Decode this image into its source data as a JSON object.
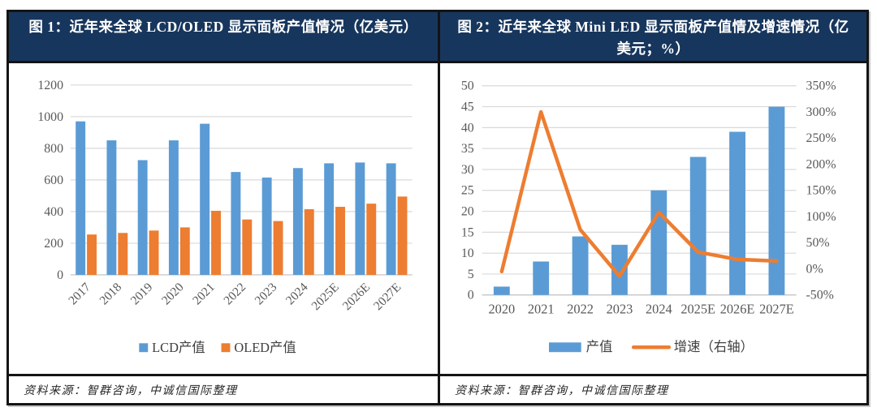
{
  "figure": {
    "panels": [
      {
        "title": "图 1：近年来全球 LCD/OLED 显示面板产值情况（亿美元）",
        "source": "资料来源：智群咨询，中诚信国际整理"
      },
      {
        "title": "图 2：近年来全球 Mini LED 显示面板产值情及增速情况（亿美元；%）",
        "source": "资料来源：智群咨询，中诚信国际整理"
      }
    ]
  },
  "colors": {
    "bar_blue": "#5B9BD5",
    "line_orange": "#ED7D31",
    "header_navy": "#17365D",
    "gridline": "#D9D9D9",
    "axis_baseline": "#BFBFBF",
    "axis_text": "#595959",
    "legend_text": "#404040",
    "border_black": "#141414"
  },
  "chart_data": [
    {
      "type": "bar",
      "title": "近年来全球 LCD/OLED 显示面板产值情况（亿美元）",
      "categories": [
        "2017",
        "2018",
        "2019",
        "2020",
        "2021",
        "2022",
        "2023",
        "2024",
        "2025E",
        "2026E",
        "2027E"
      ],
      "series": [
        {
          "name": "LCD产值",
          "color": "#5B9BD5",
          "values": [
            970,
            850,
            725,
            850,
            955,
            650,
            615,
            675,
            705,
            710,
            705
          ]
        },
        {
          "name": "OLED产值",
          "color": "#ED7D31",
          "values": [
            255,
            265,
            280,
            300,
            405,
            350,
            340,
            415,
            430,
            450,
            495
          ]
        }
      ],
      "xlabel": "",
      "ylabel": "",
      "ylim": [
        0,
        1200
      ],
      "ytick_step": 200,
      "grid": true,
      "legend_position": "bottom",
      "x_label_rotation": -45
    },
    {
      "type": "bar+line",
      "title": "近年来全球 Mini LED 显示面板产值情及增速情况（亿美元；%）",
      "categories": [
        "2020",
        "2021",
        "2022",
        "2023",
        "2024",
        "2025E",
        "2026E",
        "2027E"
      ],
      "series": [
        {
          "name": "产值",
          "kind": "bar",
          "axis": "left",
          "color": "#5B9BD5",
          "values": [
            2,
            8,
            14,
            12,
            25,
            33,
            39,
            45
          ]
        },
        {
          "name": "增速（右轴）",
          "kind": "line",
          "axis": "right",
          "color": "#ED7D31",
          "values_pct": [
            -5,
            300,
            75,
            -14,
            108,
            32,
            18,
            15
          ]
        }
      ],
      "xlabel": "",
      "left_ylim": [
        0,
        50
      ],
      "left_ytick_step": 5,
      "right_ylim_pct": [
        -50,
        350
      ],
      "right_ytick_step_pct": 50,
      "right_tick_format": "percent",
      "grid": true,
      "legend_position": "bottom"
    }
  ]
}
